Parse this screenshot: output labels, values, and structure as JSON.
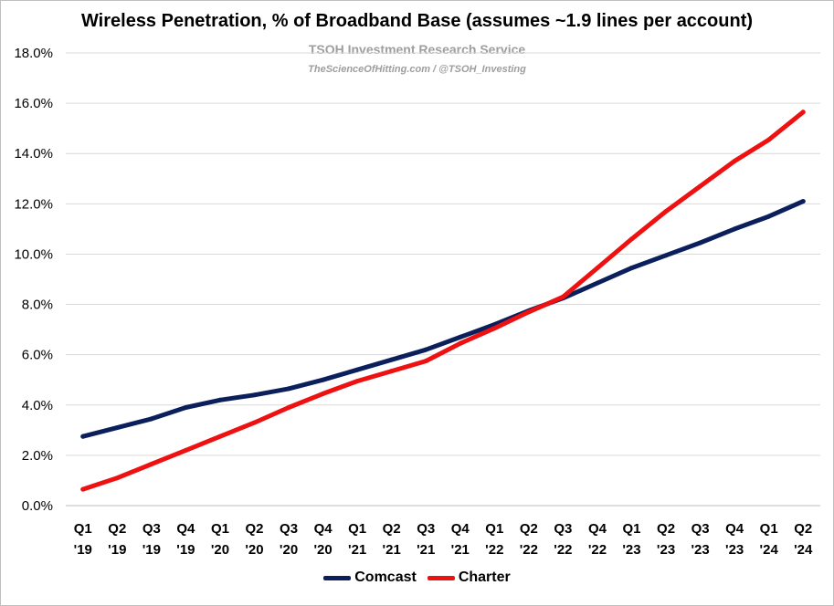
{
  "chart_data": {
    "type": "line",
    "title": "Wireless Penetration, % of Broadband Base (assumes ~1.9 lines per account)",
    "watermark_line1": "TSOH Investment Research Service",
    "watermark_line2": "TheScienceOfHitting.com / @TSOH_Investing",
    "xlabel": "",
    "ylabel": "",
    "categories": [
      [
        "Q1",
        "'19"
      ],
      [
        "Q2",
        "'19"
      ],
      [
        "Q3",
        "'19"
      ],
      [
        "Q4",
        "'19"
      ],
      [
        "Q1",
        "'20"
      ],
      [
        "Q2",
        "'20"
      ],
      [
        "Q3",
        "'20"
      ],
      [
        "Q4",
        "'20"
      ],
      [
        "Q1",
        "'21"
      ],
      [
        "Q2",
        "'21"
      ],
      [
        "Q3",
        "'21"
      ],
      [
        "Q4",
        "'21"
      ],
      [
        "Q1",
        "'22"
      ],
      [
        "Q2",
        "'22"
      ],
      [
        "Q3",
        "'22"
      ],
      [
        "Q4",
        "'22"
      ],
      [
        "Q1",
        "'23"
      ],
      [
        "Q2",
        "'23"
      ],
      [
        "Q3",
        "'23"
      ],
      [
        "Q4",
        "'23"
      ],
      [
        "Q1",
        "'24"
      ],
      [
        "Q2",
        "'24"
      ]
    ],
    "y_ticks": [
      "0.0%",
      "2.0%",
      "4.0%",
      "6.0%",
      "8.0%",
      "10.0%",
      "12.0%",
      "14.0%",
      "16.0%",
      "18.0%"
    ],
    "ylim": [
      0,
      18
    ],
    "grid": true,
    "legend_position": "bottom",
    "series": [
      {
        "name": "Comcast",
        "color": "#0b1f5c",
        "values": [
          2.75,
          3.1,
          3.45,
          3.9,
          4.2,
          4.4,
          4.65,
          5.0,
          5.4,
          5.8,
          6.2,
          6.7,
          7.2,
          7.75,
          8.25,
          8.85,
          9.45,
          9.95,
          10.45,
          11.0,
          11.5,
          12.1
        ]
      },
      {
        "name": "Charter",
        "color": "#ee1111",
        "values": [
          0.65,
          1.1,
          1.65,
          2.2,
          2.75,
          3.3,
          3.9,
          4.45,
          4.95,
          5.35,
          5.75,
          6.45,
          7.05,
          7.7,
          8.3,
          9.45,
          10.6,
          11.7,
          12.7,
          13.7,
          14.55,
          15.65
        ]
      }
    ]
  }
}
